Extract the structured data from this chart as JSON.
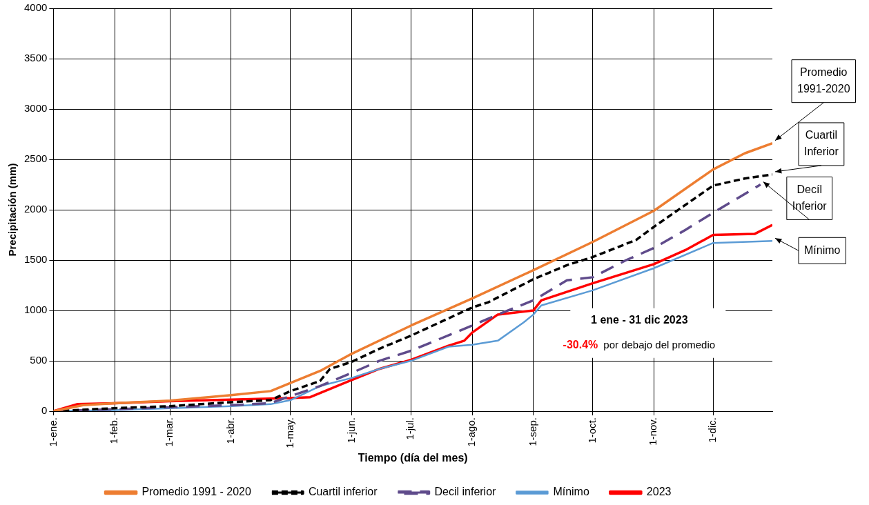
{
  "chart_data": {
    "type": "line",
    "xlabel": "Tiempo (día del mes)",
    "ylabel": "Precipitación (mm)",
    "xlim": [
      "--01-01",
      "--12-31"
    ],
    "xticks": [
      {
        "value": "--01-01",
        "label": "1-ene."
      },
      {
        "value": "--02-01",
        "label": "1-feb."
      },
      {
        "value": "--03-01",
        "label": "1-mar."
      },
      {
        "value": "--04-01",
        "label": "1-abr."
      },
      {
        "value": "--05-01",
        "label": "1-may."
      },
      {
        "value": "--06-01",
        "label": "1-jun."
      },
      {
        "value": "--07-01",
        "label": "1-jul."
      },
      {
        "value": "--08-01",
        "label": "1-ago."
      },
      {
        "value": "--09-01",
        "label": "1-sep."
      },
      {
        "value": "--10-01",
        "label": "1-oct."
      },
      {
        "value": "--11-01",
        "label": "1-nov."
      },
      {
        "value": "--12-01",
        "label": "1-dic."
      }
    ],
    "ylim": [
      0,
      4000
    ],
    "yticks": [
      0,
      500,
      1000,
      1500,
      2000,
      2500,
      3000,
      3500,
      4000
    ],
    "grid": true,
    "legend": "bottom",
    "marker": "none",
    "series": [
      {
        "name": "Promedio 1991 - 2020",
        "color": "#ed7d31",
        "line_style": "solid",
        "x": [
          "--01-01",
          "--01-16",
          "--02-01",
          "--03-01",
          "--04-01",
          "--04-21",
          "--05-01",
          "--05-16",
          "--06-01",
          "--07-01",
          "--08-01",
          "--09-01",
          "--10-01",
          "--11-01",
          "--12-01",
          "--12-17",
          "--12-31"
        ],
        "values": [
          0,
          60,
          80,
          105,
          160,
          200,
          280,
          400,
          570,
          850,
          1120,
          1400,
          1680,
          1990,
          2400,
          2560,
          2660
        ]
      },
      {
        "name": "Cuartil inferior",
        "color": "#000000",
        "line_style": "dashed",
        "x": [
          "--01-01",
          "--02-01",
          "--03-01",
          "--04-01",
          "--04-21",
          "--05-01",
          "--05-16",
          "--05-21",
          "--06-01",
          "--06-15",
          "--07-01",
          "--08-01",
          "--08-09",
          "--09-01",
          "--09-18",
          "--10-01",
          "--10-23",
          "--11-01",
          "--12-01",
          "--12-17",
          "--12-31"
        ],
        "values": [
          0,
          30,
          50,
          90,
          110,
          200,
          300,
          420,
          490,
          620,
          750,
          1030,
          1080,
          1310,
          1450,
          1530,
          1700,
          1830,
          2240,
          2310,
          2350
        ]
      },
      {
        "name": "Decil inferior",
        "color": "#5f4b8b",
        "line_style": "dashed",
        "x": [
          "--01-01",
          "--02-01",
          "--03-01",
          "--04-01",
          "--04-21",
          "--05-01",
          "--05-16",
          "--06-01",
          "--06-15",
          "--07-01",
          "--08-01",
          "--08-14",
          "--09-01",
          "--09-18",
          "--10-01",
          "--10-18",
          "--11-01",
          "--11-17",
          "--12-01",
          "--12-25"
        ],
        "values": [
          0,
          20,
          40,
          60,
          80,
          150,
          250,
          380,
          500,
          600,
          850,
          960,
          1100,
          1300,
          1330,
          1500,
          1620,
          1800,
          1970,
          2250
        ]
      },
      {
        "name": "Mínimo",
        "color": "#5b9bd5",
        "line_style": "solid",
        "x": [
          "--01-01",
          "--02-01",
          "--03-01",
          "--04-01",
          "--04-21",
          "--05-01",
          "--05-16",
          "--06-01",
          "--06-15",
          "--07-01",
          "--07-20",
          "--08-01",
          "--08-14",
          "--08-27",
          "--09-01",
          "--09-05",
          "--10-01",
          "--11-01",
          "--12-01",
          "--12-31"
        ],
        "values": [
          0,
          10,
          30,
          50,
          70,
          110,
          250,
          330,
          420,
          500,
          640,
          660,
          700,
          880,
          960,
          1050,
          1200,
          1420,
          1670,
          1690
        ]
      },
      {
        "name": "2023",
        "color": "#ff0000",
        "line_style": "solid",
        "x": [
          "--01-01",
          "--01-13",
          "--02-01",
          "--03-01",
          "--04-01",
          "--04-21",
          "--05-01",
          "--05-11",
          "--06-01",
          "--06-15",
          "--07-01",
          "--07-20",
          "--07-28",
          "--08-01",
          "--08-14",
          "--09-01",
          "--09-05",
          "--10-01",
          "--11-01",
          "--11-17",
          "--12-01",
          "--12-22",
          "--12-31"
        ],
        "values": [
          0,
          70,
          80,
          100,
          115,
          125,
          130,
          140,
          310,
          420,
          510,
          650,
          700,
          780,
          960,
          1000,
          1100,
          1270,
          1460,
          1600,
          1750,
          1760,
          1850
        ]
      }
    ],
    "annotations": [
      {
        "text": "Promedio 1991-2020",
        "x": "--12-31",
        "y": 2660
      },
      {
        "text": "Cuartil Inferior",
        "x": "--12-31",
        "y": 2350
      },
      {
        "text": "Decíl Inferior",
        "x": "--12-25",
        "y": 2250
      },
      {
        "text": "Mínimo",
        "x": "--12-31",
        "y": 1690
      },
      "1 ene - 31 dic 2023",
      "-30.4%",
      "por debajo del promedio"
    ]
  }
}
